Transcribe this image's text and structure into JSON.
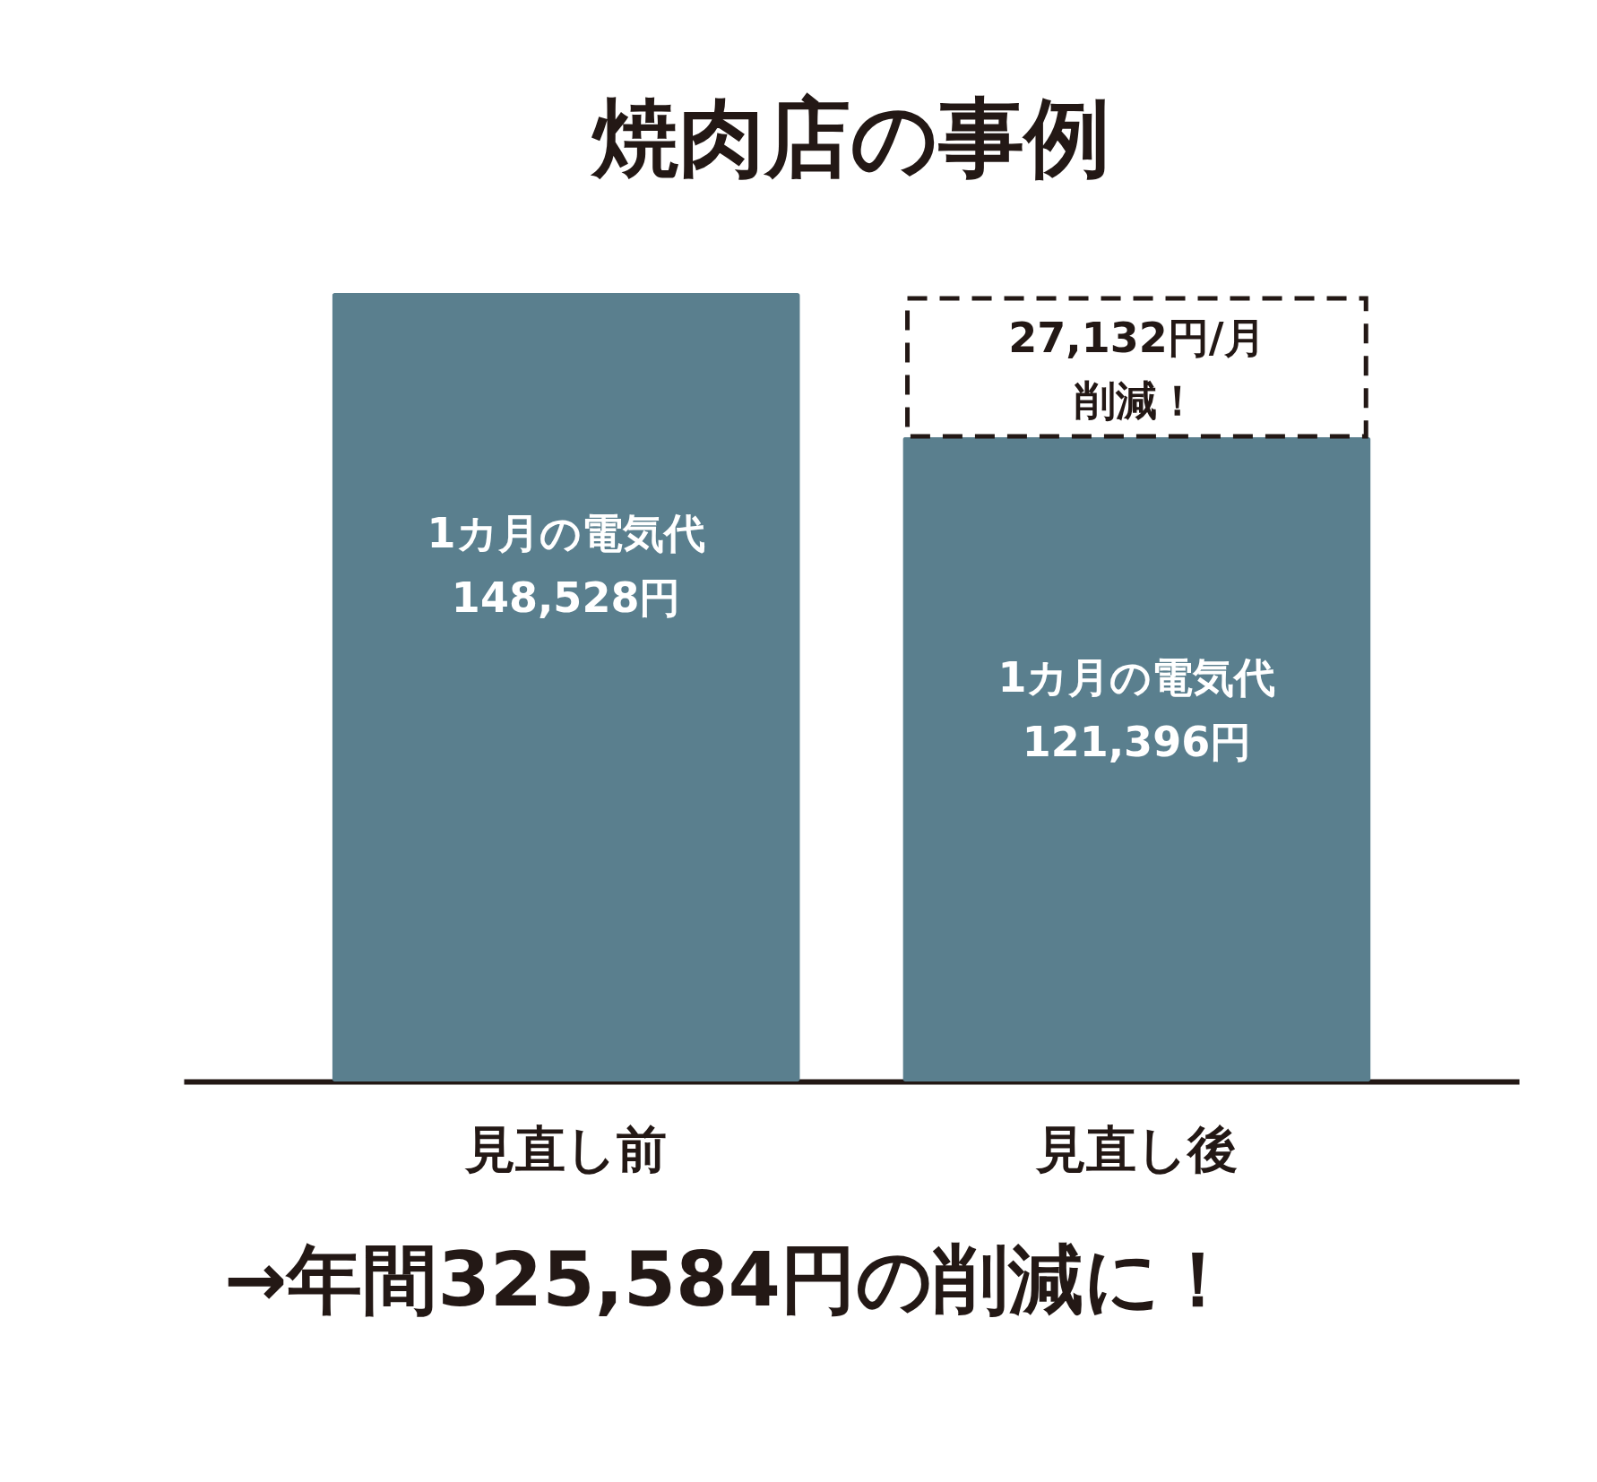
{
  "chart_data": {
    "type": "bar",
    "title": "焼肉店の事例",
    "categories": [
      "見直し前",
      "見直し後"
    ],
    "values": [
      148528,
      121396
    ],
    "color": "#5a7f8e",
    "value_labels": [
      "1カ月の電気代\n148,528円",
      "1カ月の電気代\n121,396円"
    ],
    "annotations": [
      "27,132円/月",
      "削減！",
      "→年間325,584円の削減に！"
    ],
    "tick_labels": "x"
  }
}
